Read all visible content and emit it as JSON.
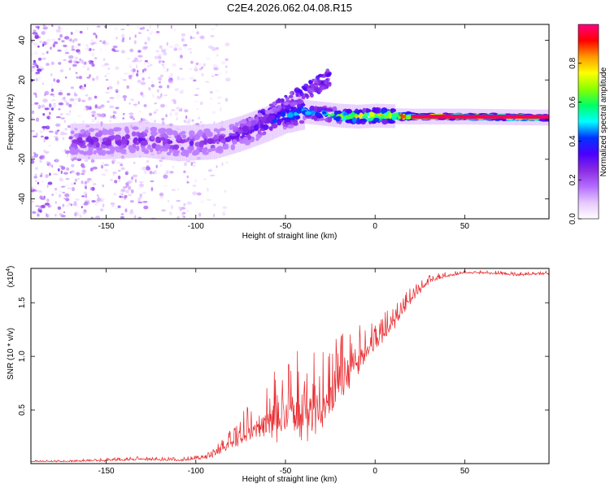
{
  "title": "C2E4.2026.062.04.08.R15",
  "colors": {
    "snr_line": "#e8262a",
    "axis": "#000000",
    "colormap": [
      "#ffffff",
      "#e6c8ff",
      "#b36bff",
      "#8a2be2",
      "#4b00ff",
      "#0033ff",
      "#00ffff",
      "#00ff66",
      "#88ff00",
      "#ffff00",
      "#ff9900",
      "#ff0000",
      "#ff0080"
    ]
  },
  "chart_data": [
    {
      "type": "heatmap",
      "title": "C2E4.2026.062.04.08.R15",
      "xlabel": "Height of straight line (km)",
      "ylabel": "Frequency (Hz)",
      "xlim": [
        -192,
        97
      ],
      "ylim": [
        -50,
        48
      ],
      "xticks": [
        -150,
        -100,
        -50,
        0,
        50
      ],
      "xtick_labels": [
        "-150",
        "-100",
        "-50",
        "0",
        "50"
      ],
      "yticks": [
        -40,
        -20,
        0,
        20,
        40
      ],
      "ytick_labels": [
        "-40",
        "-20",
        "0",
        "20",
        "40"
      ],
      "colorbar": {
        "label": "Normalized spectral amplitude",
        "range": [
          0,
          1
        ],
        "ticks": [
          0.0,
          0.2,
          0.4,
          0.6,
          0.8
        ],
        "tick_labels": [
          "0.0",
          "0.2",
          "0.4",
          "0.6",
          "0.8"
        ]
      },
      "ridge": {
        "x": [
          -170,
          -150,
          -130,
          -110,
          -90,
          -75,
          -60,
          -50,
          -40,
          -30,
          -20,
          -10,
          0,
          20,
          50,
          97
        ],
        "freq": [
          -11,
          -11,
          -10,
          -12,
          -11,
          -7,
          -2,
          2,
          4,
          3,
          2,
          1.5,
          2,
          1.5,
          1.5,
          1
        ],
        "peak_amplitude": [
          0.3,
          0.3,
          0.32,
          0.3,
          0.3,
          0.35,
          0.4,
          0.5,
          0.55,
          0.6,
          0.7,
          0.85,
          0.9,
          0.95,
          1.0,
          1.0
        ]
      }
    },
    {
      "type": "line",
      "xlabel": "Height of straight line (km)",
      "ylabel": "SNR (10 * v/v)",
      "y_multiplier_label": "(x10",
      "y_multiplier_exponent": "4",
      "y_multiplier_close": ")",
      "xlim": [
        -192,
        97
      ],
      "ylim": [
        0,
        1.82
      ],
      "xticks": [
        -150,
        -100,
        -50,
        0,
        50
      ],
      "xtick_labels": [
        "-150",
        "-100",
        "-50",
        "0",
        "50"
      ],
      "yticks": [
        0.5,
        1.0,
        1.5
      ],
      "ytick_labels": [
        "0.5",
        "1.0",
        "1.5"
      ],
      "series": [
        {
          "name": "SNR",
          "x": [
            -192,
            -170,
            -150,
            -130,
            -110,
            -95,
            -90,
            -85,
            -80,
            -75,
            -70,
            -65,
            -60,
            -55,
            -50,
            -45,
            -40,
            -35,
            -30,
            -25,
            -20,
            -15,
            -10,
            -5,
            0,
            5,
            10,
            15,
            20,
            25,
            30,
            40,
            50,
            60,
            70,
            80,
            97
          ],
          "y": [
            0.02,
            0.02,
            0.03,
            0.04,
            0.03,
            0.05,
            0.08,
            0.13,
            0.18,
            0.24,
            0.28,
            0.33,
            0.37,
            0.4,
            0.42,
            0.44,
            0.47,
            0.5,
            0.52,
            0.6,
            0.72,
            0.84,
            0.95,
            1.04,
            1.11,
            1.2,
            1.3,
            1.42,
            1.52,
            1.62,
            1.7,
            1.75,
            1.78,
            1.78,
            1.77,
            1.76,
            1.77
          ],
          "noise": [
            0.01,
            0.01,
            0.02,
            0.02,
            0.02,
            0.03,
            0.05,
            0.08,
            0.12,
            0.18,
            0.24,
            0.3,
            0.36,
            0.42,
            0.45,
            0.48,
            0.52,
            0.5,
            0.48,
            0.46,
            0.4,
            0.34,
            0.28,
            0.22,
            0.18,
            0.16,
            0.14,
            0.12,
            0.1,
            0.08,
            0.05,
            0.03,
            0.02,
            0.02,
            0.02,
            0.02,
            0.02
          ]
        }
      ]
    }
  ]
}
